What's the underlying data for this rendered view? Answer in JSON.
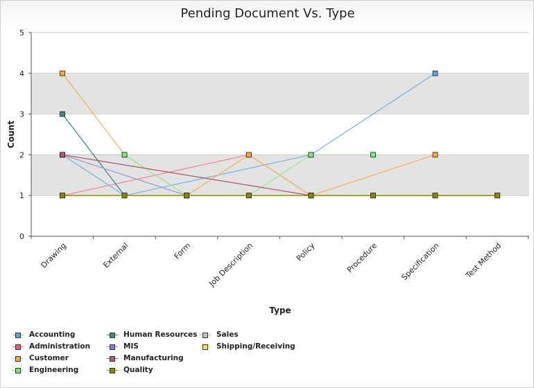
{
  "chart_data": {
    "type": "line",
    "title": "Pending Document Vs. Type",
    "xlabel": "Type",
    "ylabel": "Count",
    "ylim": [
      0,
      5
    ],
    "yticks": [
      0,
      1,
      2,
      3,
      4,
      5
    ],
    "grid": true,
    "legend_position": "bottom-left",
    "categories": [
      "Drawing",
      "External",
      "Form",
      "Job Description",
      "Policy",
      "Procedure",
      "Specification",
      "Test Method"
    ],
    "series": [
      {
        "name": "Accounting",
        "color": "#7fb7e0",
        "marker": "#5fa3d9",
        "values": [
          2,
          1,
          null,
          null,
          2,
          null,
          4,
          null
        ]
      },
      {
        "name": "Administration",
        "color": "#f08898",
        "marker": "#ee5f75",
        "values": [
          1,
          null,
          null,
          2,
          1,
          1,
          1,
          1
        ]
      },
      {
        "name": "Customer",
        "color": "#f5b860",
        "marker": "#f5a83c",
        "values": [
          4,
          2,
          1,
          2,
          1,
          null,
          2,
          null
        ]
      },
      {
        "name": "Engineering",
        "color": "#98ec98",
        "marker": "#7ee87e",
        "values": [
          2,
          2,
          1,
          1,
          2,
          2,
          null,
          null
        ]
      },
      {
        "name": "Human Resources",
        "color": "#3f8a86",
        "marker": "#3f8a86",
        "values": [
          3,
          1,
          null,
          null,
          null,
          null,
          null,
          null
        ]
      },
      {
        "name": "MIS",
        "color": "#a49ad6",
        "marker": "#8a7fce",
        "values": [
          2,
          null,
          1,
          null,
          null,
          null,
          null,
          null
        ]
      },
      {
        "name": "Manufacturing",
        "color": "#b05d6c",
        "marker": "#b05d6c",
        "values": [
          2,
          null,
          null,
          null,
          1,
          null,
          null,
          null
        ]
      },
      {
        "name": "Quality",
        "color": "#8a8a00",
        "marker": "#8a8a00",
        "values": [
          1,
          1,
          1,
          1,
          1,
          1,
          1,
          1
        ]
      },
      {
        "name": "Sales",
        "color": "#c0c0c0",
        "marker": "#c0c0c0",
        "values": [
          null,
          null,
          null,
          null,
          null,
          null,
          null,
          null
        ]
      },
      {
        "name": "Shipping/Receiving",
        "color": "#f2ea5a",
        "marker": "#f2ea5a",
        "values": [
          null,
          null,
          null,
          null,
          null,
          null,
          null,
          null
        ]
      }
    ]
  }
}
